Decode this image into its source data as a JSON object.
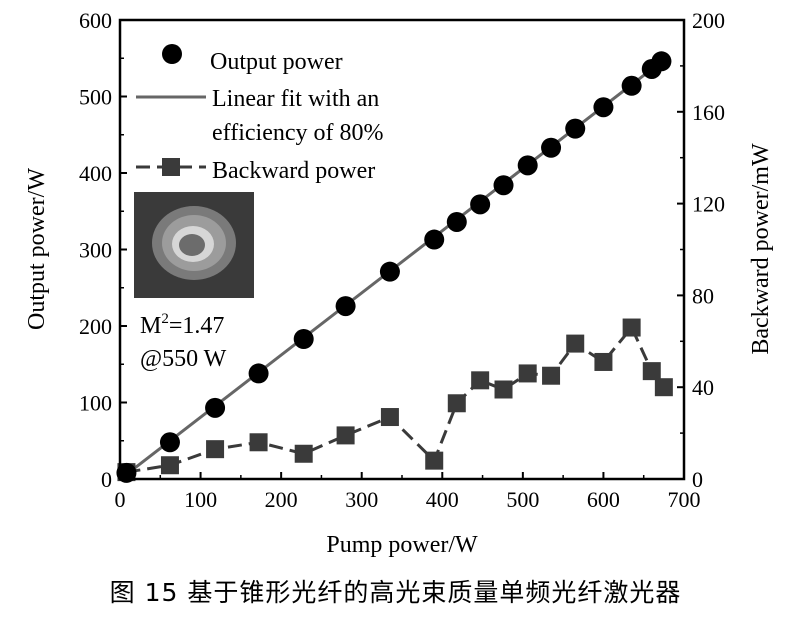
{
  "caption": "图 15   基于锥形光纤的高光束质量单频光纤激光器",
  "chart_data": {
    "type": "line",
    "xlabel": "Pump power/W",
    "ylabel": "Output power/W",
    "y2label": "Backward power/mW",
    "xlim": [
      0,
      700
    ],
    "ylim": [
      0,
      600
    ],
    "y2lim": [
      0,
      200
    ],
    "x_ticks": [
      "0",
      "100",
      "200",
      "300",
      "400",
      "500",
      "600",
      "700"
    ],
    "y_ticks": [
      "0",
      "100",
      "200",
      "300",
      "400",
      "500",
      "600"
    ],
    "y2_ticks": [
      "0",
      "40",
      "80",
      "120",
      "160",
      "200"
    ],
    "grid": false,
    "legend_position": "top-left",
    "legend": [
      {
        "label": "Output power",
        "marker": "circle"
      },
      {
        "label": "Linear fit with an",
        "label2": "efficiency of 80%",
        "marker": "line"
      },
      {
        "label": "Backward power",
        "marker": "square-dashed"
      }
    ],
    "inset": {
      "m2": "1.47",
      "at_label": "@550 W"
    },
    "series": [
      {
        "name": "Output power",
        "axis": "left",
        "style": "circle-markers",
        "color": "#000000",
        "x": [
          8,
          62,
          118,
          172,
          228,
          280,
          335,
          390,
          418,
          447,
          476,
          506,
          535,
          565,
          600,
          635,
          660,
          672
        ],
        "y": [
          8,
          48,
          93,
          138,
          183,
          226,
          271,
          313,
          336,
          359,
          384,
          410,
          433,
          458,
          486,
          514,
          536,
          546
        ]
      },
      {
        "name": "Linear fit with an efficiency of 80%",
        "axis": "left",
        "style": "line",
        "color": "#666666",
        "x": [
          8,
          680
        ],
        "y": [
          6,
          552
        ]
      },
      {
        "name": "Backward power",
        "axis": "right",
        "style": "square-dashed",
        "color": "#3a3a3a",
        "x": [
          8,
          62,
          118,
          172,
          228,
          280,
          335,
          390,
          418,
          447,
          476,
          506,
          535,
          565,
          600,
          635,
          660,
          675
        ],
        "y": [
          3,
          6,
          13,
          16,
          11,
          19,
          27,
          8,
          33,
          43,
          39,
          46,
          45,
          59,
          51,
          66,
          47,
          40
        ]
      }
    ]
  }
}
